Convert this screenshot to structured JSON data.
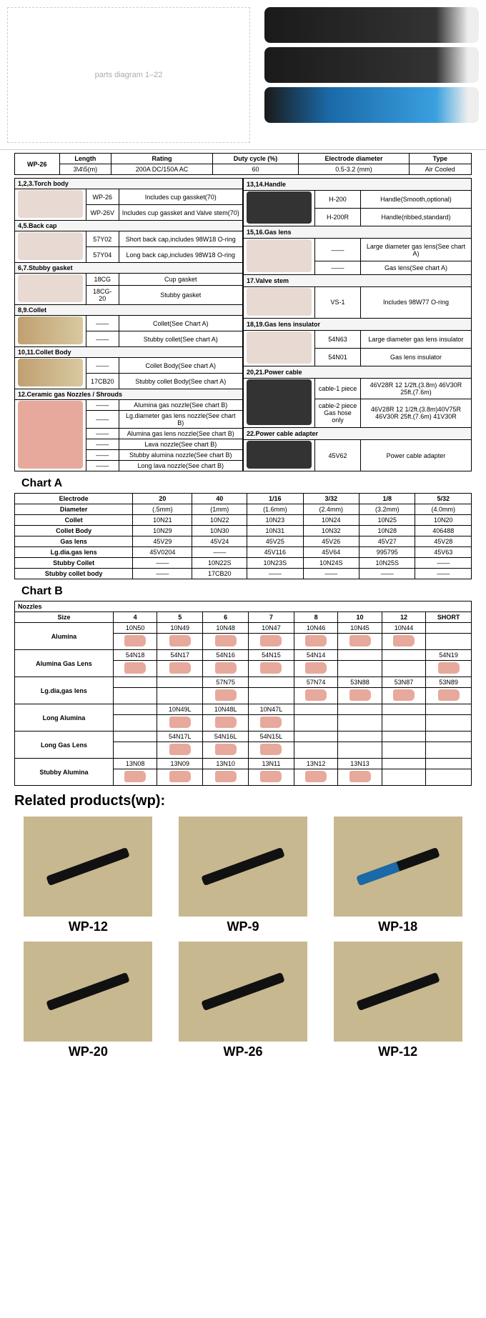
{
  "specHeader": {
    "model": "WP-26",
    "cols": [
      "Length",
      "Rating",
      "Duty cycle (%)",
      "Electrode diameter",
      "Type"
    ],
    "vals": [
      "3\\4\\5(m)",
      "200A DC/150A AC",
      "60",
      "0.5-3.2 (mm)",
      "Air Cooled"
    ]
  },
  "leftSections": [
    {
      "title": "1,2,3.Torch body",
      "rows": [
        {
          "code": "WP-26",
          "desc": "Includes cup gassket(70)"
        },
        {
          "code": "WP-26V",
          "desc": "Includes cup gassket and Valve stem(70)"
        }
      ]
    },
    {
      "title": "4,5.Back cap",
      "rows": [
        {
          "code": "57Y02",
          "desc": "Short back cap,includes 98W18 O-ring"
        },
        {
          "code": "57Y04",
          "desc": "Long back cap,includes 98W18 O-ring"
        }
      ]
    },
    {
      "title": "6,7.Stubby gasket",
      "rows": [
        {
          "code": "18CG",
          "desc": "Cup gasket"
        },
        {
          "code": "18CG-20",
          "desc": "Stubby gasket"
        }
      ]
    },
    {
      "title": "8,9.Collet",
      "rows": [
        {
          "code": "——",
          "desc": "Collet(See Chart A)"
        },
        {
          "code": "——",
          "desc": "Stubby collet(See chart A)"
        }
      ]
    },
    {
      "title": "10,11.Collet Body",
      "rows": [
        {
          "code": "——",
          "desc": "Collet Body(See chart A)"
        },
        {
          "code": "17CB20",
          "desc": "Stubby collet Body(See chart A)"
        }
      ]
    },
    {
      "title": "12.Ceramic gas Nozzles / Shrouds",
      "rows": [
        {
          "code": "——",
          "desc": "Alumina gas nozzle(See chart B)"
        },
        {
          "code": "——",
          "desc": "Lg.diameter gas lens nozzle(See chart B)"
        },
        {
          "code": "——",
          "desc": "Alumina gas lens nozzle(See chart B)"
        },
        {
          "code": "——",
          "desc": "Lava nozzle(See chart B)"
        },
        {
          "code": "——",
          "desc": "Stubby alumina nozzle(See chart B)"
        },
        {
          "code": "——",
          "desc": "Long lava nozzle(See chart B)"
        }
      ]
    }
  ],
  "rightSections": [
    {
      "title": "13,14.Handle",
      "rows": [
        {
          "code": "H-200",
          "desc": "Handle(Smooth,optional)"
        },
        {
          "code": "H-200R",
          "desc": "Handle(ribbed,standard)"
        }
      ]
    },
    {
      "title": "15,16.Gas lens",
      "rows": [
        {
          "code": "——",
          "desc": "Large diameter gas lens(See chart A)"
        },
        {
          "code": "——",
          "desc": "Gas lens(See chart A)"
        }
      ]
    },
    {
      "title": "17.Valve stem",
      "rows": [
        {
          "code": "VS-1",
          "desc": "Includes 98W77 O-ring"
        }
      ]
    },
    {
      "title": "18,19.Gas lens insulator",
      "rows": [
        {
          "code": "54N63",
          "desc": "Large diameter gas lens insulator"
        },
        {
          "code": "54N01",
          "desc": "Gas lens insulator"
        }
      ]
    },
    {
      "title": "20,21.Power cable",
      "rows": [
        {
          "code": "cable-1 piece",
          "desc": "46V28R 12 1/2ft.(3.8m) 46V30R 25ft.(7.6m)"
        },
        {
          "code": "cable-2 piece Gas hose only",
          "desc": "46V28R 12 1/2ft.(3.8m)40V75R 46V30R 25ft.(7.6m) 41V30R"
        }
      ]
    },
    {
      "title": "22.Power cable adapter",
      "rows": [
        {
          "code": "45V62",
          "desc": "Power cable adapter"
        }
      ]
    }
  ],
  "chartA": {
    "title": "Chart A",
    "header": [
      "Electrode",
      "20",
      "40",
      "1/16",
      "3/32",
      "1/8",
      "5/32"
    ],
    "rows": [
      [
        "Diameter",
        "(.5mm)",
        "(1mm)",
        "(1.6mm)",
        "(2.4mm)",
        "(3.2mm)",
        "(4.0mm)"
      ],
      [
        "Collet",
        "10N21",
        "10N22",
        "10N23",
        "10N24",
        "10N25",
        "10N20"
      ],
      [
        "Collet Body",
        "10N29",
        "10N30",
        "10N31",
        "10N32",
        "10N28",
        "406488"
      ],
      [
        "Gas lens",
        "45V29",
        "45V24",
        "45V25",
        "45V26",
        "45V27",
        "45V28"
      ],
      [
        "Lg.dia.gas lens",
        "45V0204",
        "——",
        "45V116",
        "45V64",
        "995795",
        "45V63"
      ],
      [
        "Stubby Collet",
        "——",
        "10N22S",
        "10N23S",
        "10N24S",
        "10N25S",
        "——"
      ],
      [
        "Stubby collet body",
        "——",
        "17CB20",
        "——",
        "——",
        "——",
        "——"
      ]
    ]
  },
  "chartB": {
    "title": "Chart B",
    "nozzlesLabel": "Nozzles",
    "sizeLabel": "Size",
    "sizes": [
      "4",
      "5",
      "6",
      "7",
      "8",
      "10",
      "12",
      "SHORT"
    ],
    "groups": [
      {
        "name": "Alumina",
        "codes": [
          "10N50",
          "10N49",
          "10N48",
          "10N47",
          "10N46",
          "10N45",
          "10N44",
          ""
        ]
      },
      {
        "name": "Alumina Gas Lens",
        "codes": [
          "54N18",
          "54N17",
          "54N16",
          "54N15",
          "54N14",
          "",
          "",
          "54N19"
        ]
      },
      {
        "name": "Lg.dia,gas lens",
        "codes": [
          "",
          "",
          "57N75",
          "",
          "57N74",
          "53N88",
          "53N87",
          "53N89"
        ]
      },
      {
        "name": "Long Alumina",
        "codes": [
          "",
          "10N49L",
          "10N48L",
          "10N47L",
          "",
          "",
          "",
          ""
        ]
      },
      {
        "name": "Long Gas Lens",
        "codes": [
          "",
          "54N17L",
          "54N16L",
          "54N15L",
          "",
          "",
          "",
          ""
        ]
      },
      {
        "name": "Stubby Alumina",
        "codes": [
          "13N08",
          "13N09",
          "13N10",
          "13N11",
          "13N12",
          "13N13",
          "",
          ""
        ]
      }
    ]
  },
  "related": {
    "title": "Related products(wp):",
    "items": [
      "WP-12",
      "WP-9",
      "WP-18",
      "WP-20",
      "WP-26",
      "WP-12"
    ]
  }
}
